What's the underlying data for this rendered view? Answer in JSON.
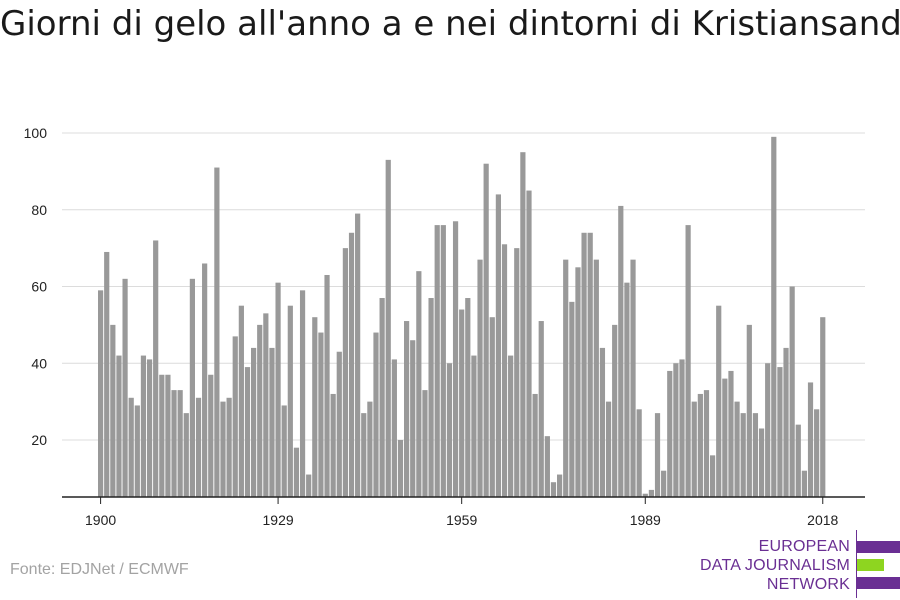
{
  "title": "Giorni di gelo all'anno a e nei dintorni di Kristiansand",
  "source": "Fonte: EDJNet / ECMWF",
  "logo": {
    "lines": [
      "EUROPEAN",
      "DATA JOURNALISM",
      "NETWORK"
    ],
    "colors": {
      "purple": "#6a2f93",
      "green": "#8ed520"
    }
  },
  "chart_data": {
    "type": "bar",
    "x_start": 1900,
    "xticks": [
      1900,
      1929,
      1959,
      1989,
      2018
    ],
    "yticks": [
      20,
      40,
      60,
      80,
      100
    ],
    "ylim": [
      5,
      100
    ],
    "grid": true,
    "bar_color": "#999999",
    "values": [
      59,
      69,
      50,
      42,
      62,
      31,
      29,
      42,
      41,
      72,
      37,
      37,
      33,
      33,
      27,
      62,
      31,
      66,
      37,
      91,
      30,
      31,
      47,
      55,
      39,
      44,
      50,
      53,
      44,
      61,
      29,
      55,
      18,
      59,
      11,
      52,
      48,
      63,
      32,
      43,
      70,
      74,
      79,
      27,
      30,
      48,
      57,
      93,
      41,
      20,
      51,
      46,
      64,
      33,
      57,
      76,
      76,
      40,
      77,
      54,
      57,
      42,
      67,
      92,
      52,
      84,
      71,
      42,
      70,
      95,
      85,
      32,
      51,
      21,
      9,
      11,
      67,
      56,
      65,
      74,
      74,
      67,
      44,
      30,
      50,
      81,
      61,
      67,
      28,
      6,
      7,
      27,
      12,
      38,
      40,
      41,
      76,
      30,
      32,
      33,
      16,
      55,
      36,
      38,
      30,
      27,
      50,
      27,
      23,
      40,
      99,
      39,
      44,
      60,
      24,
      12,
      35,
      28,
      52
    ]
  }
}
